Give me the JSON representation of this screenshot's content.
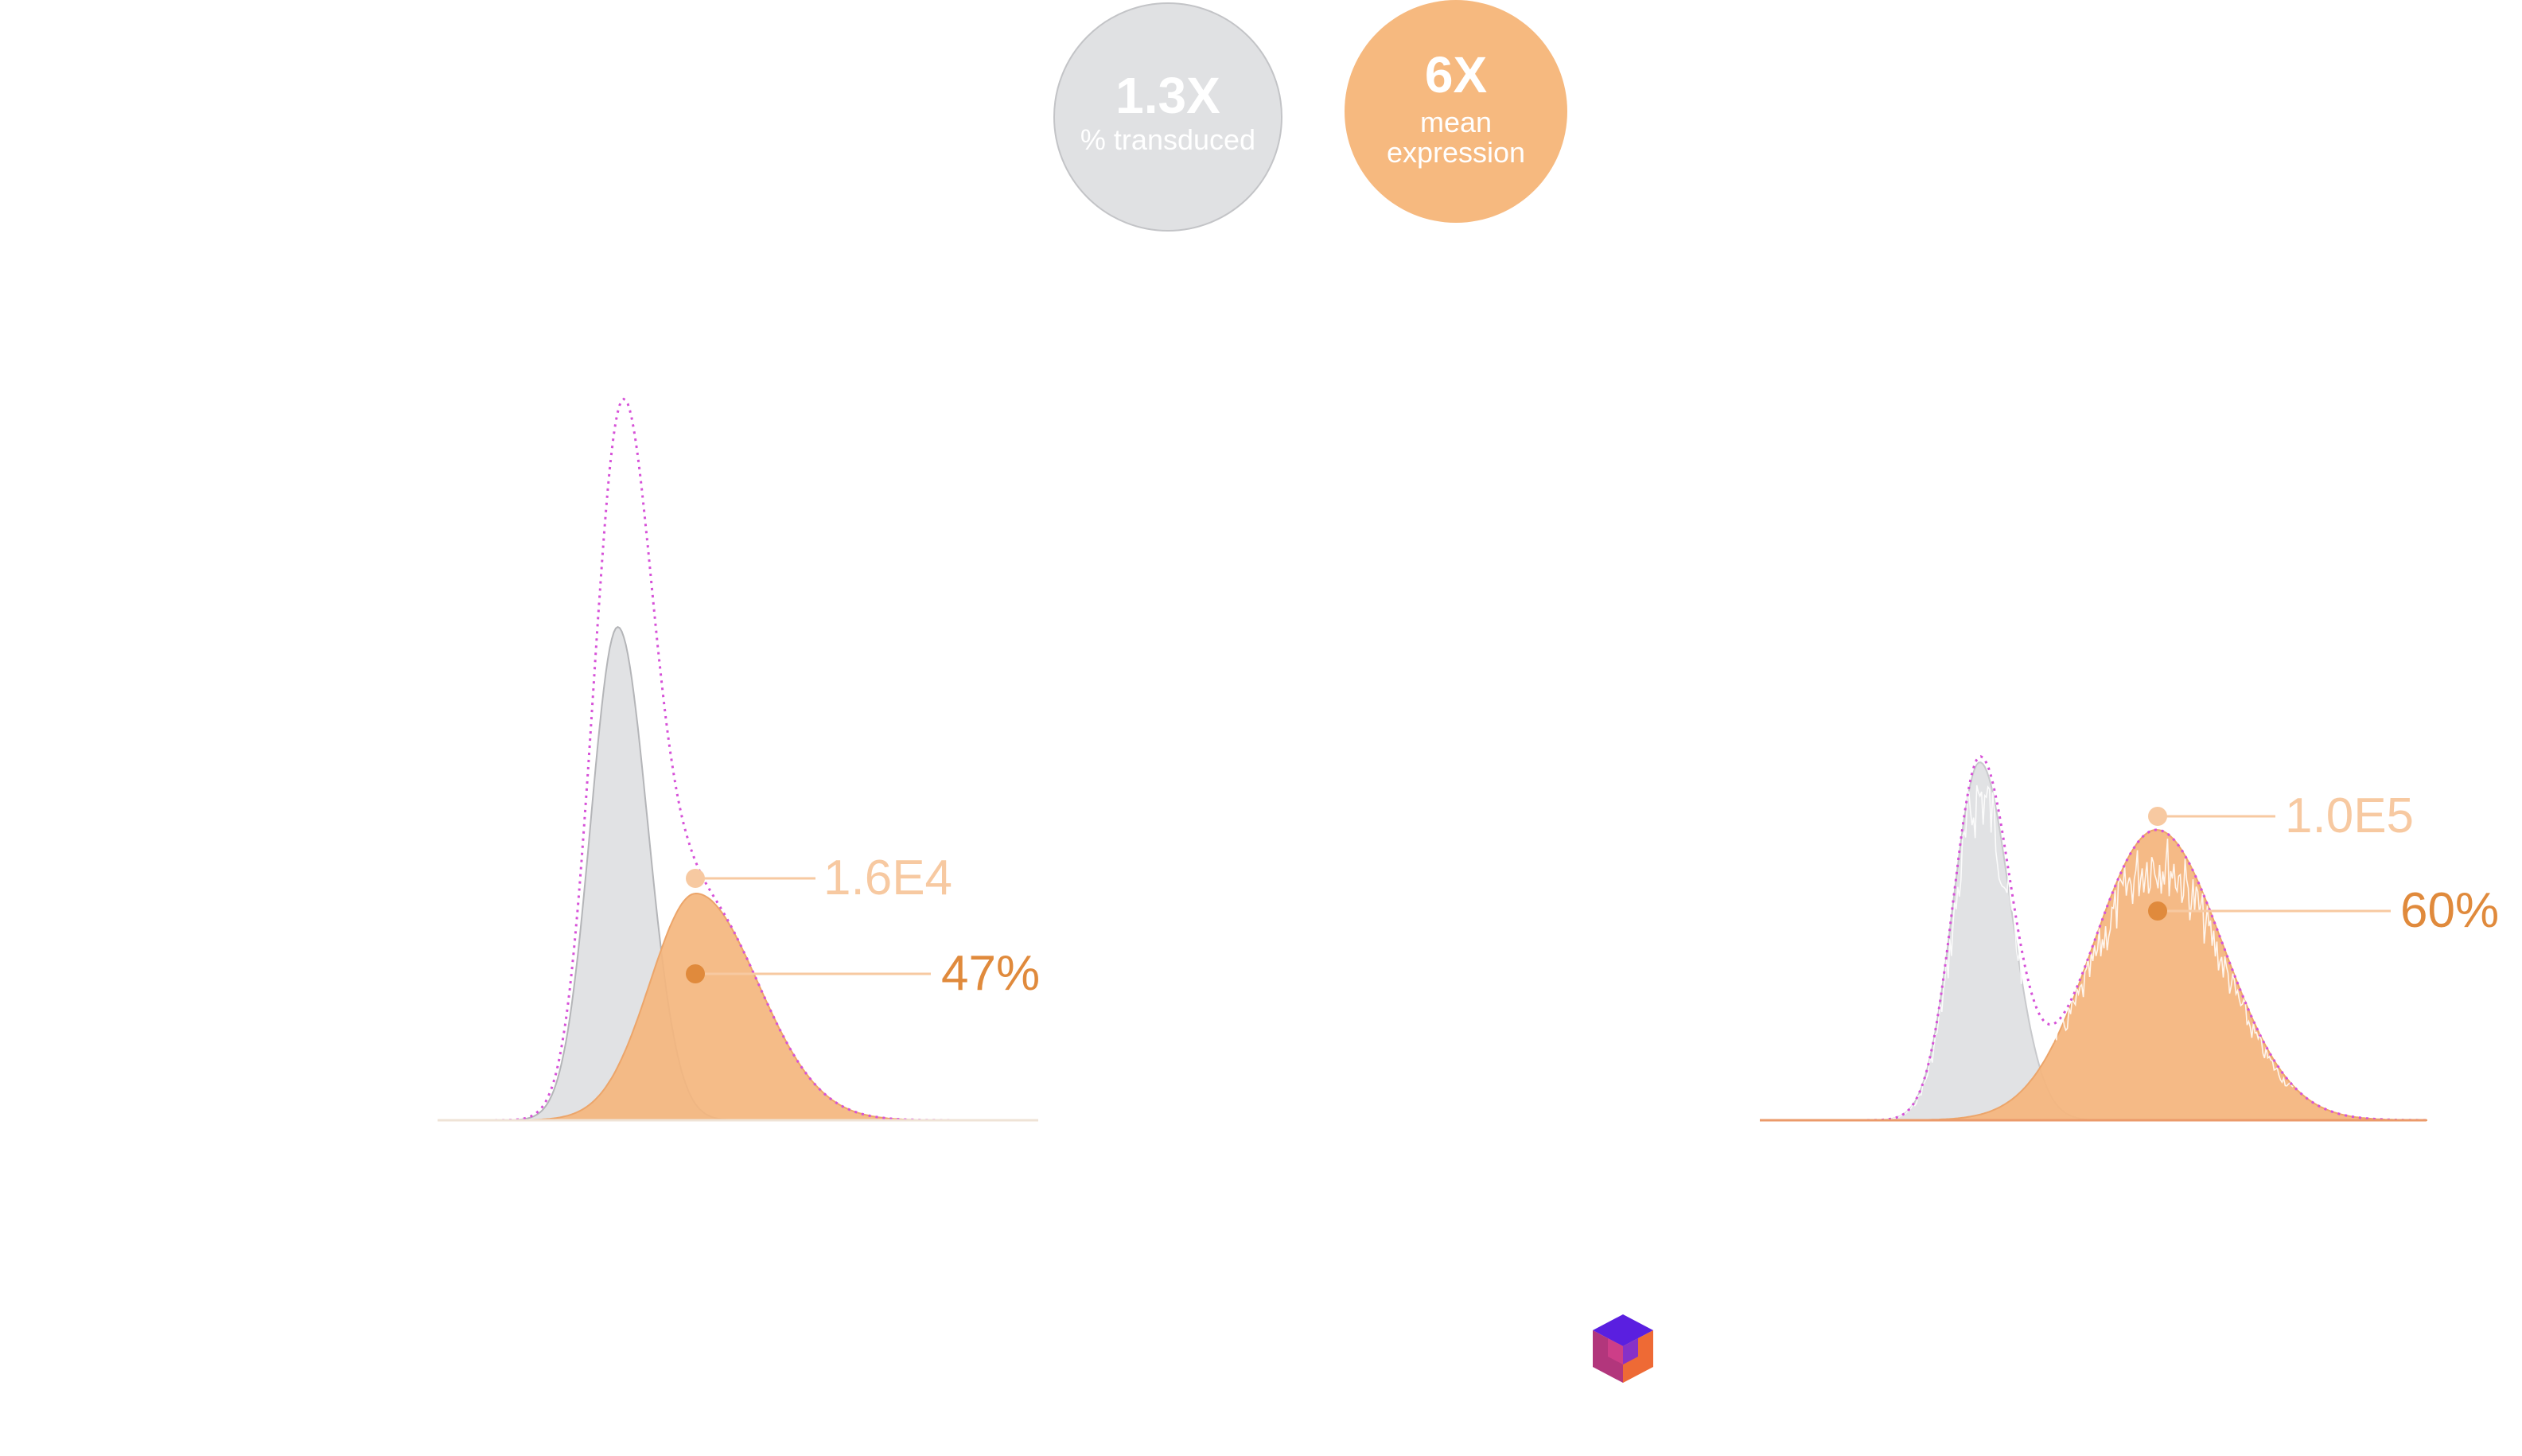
{
  "summary": {
    "transduced_fold": "1.3X",
    "transduced_label": "% transduced",
    "expression_fold": "6X",
    "expression_label_line1": "mean",
    "expression_label_line2": "expression"
  },
  "colors": {
    "grey_fill": "#e1e2e4",
    "grey_stroke": "#b4b5b8",
    "orange_fill": "#f4b67e",
    "orange_stroke": "#eca56a",
    "orange_light_text": "#f7c9a1",
    "orange_dark_text": "#e08a3c",
    "envelope": "#d651d8",
    "circle_grey": "#e0e1e3",
    "circle_orange": "#f6b97f"
  },
  "chart_data": [
    {
      "type": "area",
      "name": "left-histogram",
      "series": [
        {
          "name": "untransduced",
          "peak_center": 0.3,
          "peak_width": 0.045,
          "peak_height": 0.62
        },
        {
          "name": "transduced",
          "peak_center": 0.43,
          "peak_width": 0.09,
          "peak_height": 0.285
        },
        {
          "name": "sum-envelope"
        }
      ],
      "annotations": {
        "mean_expression": "1.6E4",
        "percent_transduced": "47%"
      }
    },
    {
      "type": "area",
      "name": "right-histogram",
      "series": [
        {
          "name": "untransduced",
          "peak_center": 0.33,
          "peak_width": 0.04,
          "peak_height": 0.45
        },
        {
          "name": "transduced",
          "peak_center": 0.595,
          "peak_width": 0.105,
          "peak_height": 0.365
        },
        {
          "name": "sum-envelope"
        }
      ],
      "annotations": {
        "mean_expression": "1.0E5",
        "percent_transduced": "60%"
      }
    }
  ]
}
